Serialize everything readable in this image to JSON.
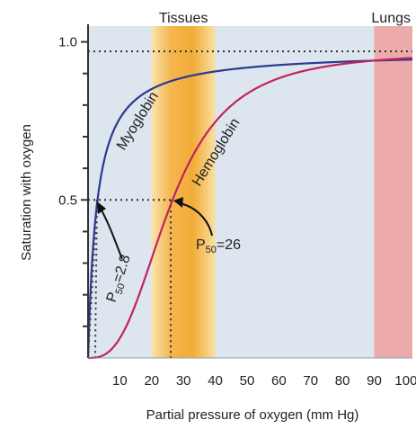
{
  "chart_data": {
    "type": "line",
    "xlabel": "Partial pressure of oxygen (mm Hg)",
    "ylabel": "Saturation with oxygen",
    "xlim": [
      0,
      102
    ],
    "ylim": [
      0,
      1.05
    ],
    "x_ticks": [
      10,
      20,
      30,
      40,
      50,
      60,
      70,
      80,
      90,
      100
    ],
    "y_ticks_labeled": [
      0.5,
      1.0
    ],
    "y_tick_labels": [
      "0.5",
      "1.0"
    ],
    "y_ticks_minor": [
      0.1,
      0.2,
      0.3,
      0.4,
      0.6,
      0.7,
      0.8,
      0.9
    ],
    "regions": [
      {
        "label": "Tissues",
        "x_start": 20,
        "x_end": 40,
        "color": "#f3a92e"
      },
      {
        "label": "Lungs",
        "x_start": 90,
        "x_end": 102,
        "color": "#eea09e"
      }
    ],
    "series": [
      {
        "name": "Myoglobin",
        "color": "#2b3a8f",
        "p50": 2.8,
        "hill_n": 1.0,
        "max": 0.97
      },
      {
        "name": "Hemoglobin",
        "color": "#c0245c",
        "p50": 26,
        "hill_n": 2.8,
        "max": 0.97
      }
    ],
    "annotations": {
      "myoglobin_p50": {
        "sub": "50",
        "value": "=2.8"
      },
      "hemoglobin_p50": {
        "sub": "50",
        "value": "=26"
      }
    },
    "reference_lines": {
      "y_top": 0.97,
      "y_half": 0.5
    },
    "grid": false
  },
  "colors": {
    "plot_background": "#dde6ee",
    "axis": "#333333",
    "dotted": "#333333"
  }
}
